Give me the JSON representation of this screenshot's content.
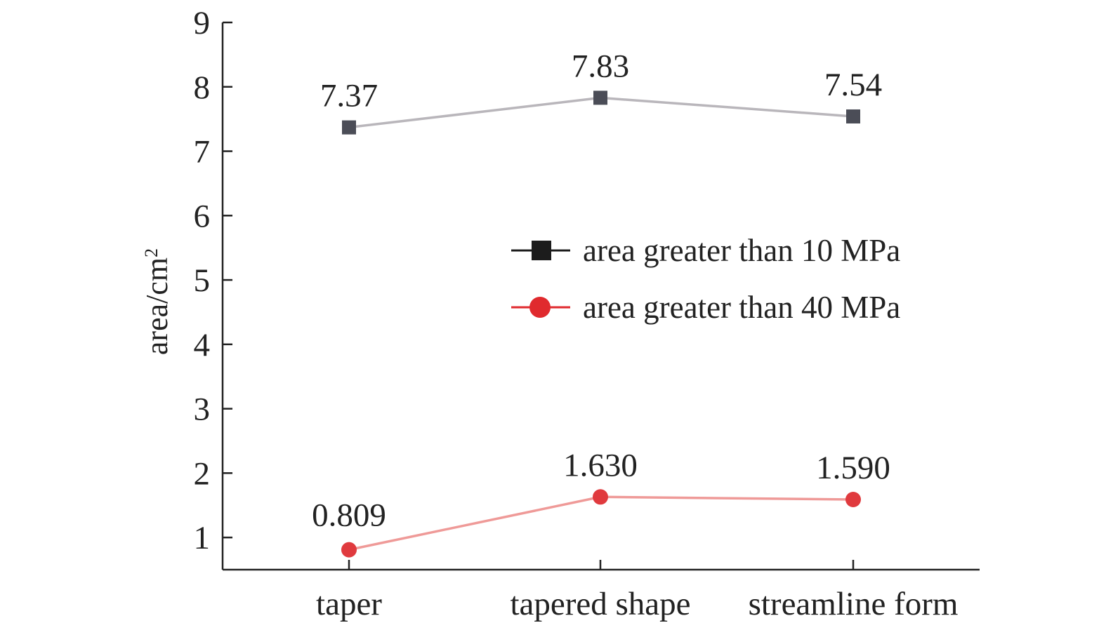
{
  "chart_data": {
    "type": "line",
    "categories": [
      "taper",
      "tapered shape",
      "streamline form"
    ],
    "series": [
      {
        "name": "area greater than 10 MPa",
        "values": [
          7.37,
          7.83,
          7.54
        ],
        "labels": [
          "7.37",
          "7.83",
          "7.54"
        ],
        "marker": "square",
        "line_color": "#b9b6bb",
        "marker_color": "#4b4d57",
        "legend_color": "#1c1c1c"
      },
      {
        "name": "area greater than 40 MPa",
        "values": [
          0.809,
          1.63,
          1.59
        ],
        "labels": [
          "0.809",
          "1.630",
          "1.590"
        ],
        "marker": "circle",
        "line_color": "#ef9a98",
        "marker_color": "#e03a3e",
        "legend_color": "#e02a2e"
      }
    ],
    "ylabel": "area/cm",
    "ylabel_superscript": "2",
    "ylim": [
      0.5,
      9
    ],
    "yticks": [
      1,
      2,
      3,
      4,
      5,
      6,
      7,
      8,
      9
    ],
    "grid": false,
    "legend_position": "center-right"
  }
}
